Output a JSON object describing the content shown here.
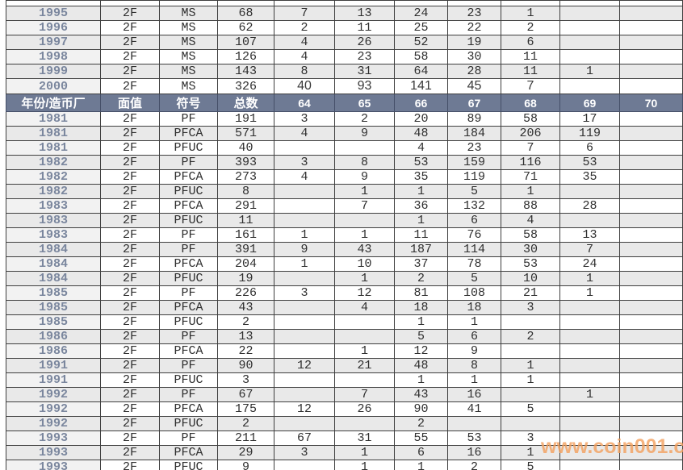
{
  "chart_data": {
    "type": "table",
    "header": [
      "年份/造币厂",
      "面值",
      "符号",
      "总数",
      "64",
      "65",
      "66",
      "67",
      "68",
      "69",
      "70"
    ],
    "partial_row_at_top": true,
    "sections": [
      {
        "name": "ms-rows-above-header",
        "first_shade": "gray",
        "rows": [
          [
            "1995",
            "2F",
            "MS",
            "68",
            "7",
            "13",
            "24",
            "23",
            "1",
            "",
            ""
          ],
          [
            "1996",
            "2F",
            "MS",
            "62",
            "2",
            "11",
            "25",
            "22",
            "2",
            "",
            ""
          ],
          [
            "1997",
            "2F",
            "MS",
            "107",
            "4",
            "26",
            "52",
            "19",
            "6",
            "",
            ""
          ],
          [
            "1998",
            "2F",
            "MS",
            "126",
            "4",
            "23",
            "58",
            "30",
            "11",
            "",
            ""
          ],
          [
            "1999",
            "2F",
            "MS",
            "143",
            "8",
            "31",
            "64",
            "28",
            "11",
            "1",
            ""
          ],
          [
            "2000",
            "2F",
            "MS",
            "326",
            "40",
            "93",
            "141",
            "45",
            "7",
            "",
            ""
          ]
        ]
      },
      {
        "name": "pf-rows-below-header",
        "first_shade": "white",
        "rows": [
          [
            "1981",
            "2F",
            "PF",
            "191",
            "3",
            "2",
            "20",
            "89",
            "58",
            "17",
            ""
          ],
          [
            "1981",
            "2F",
            "PFCA",
            "571",
            "4",
            "9",
            "48",
            "184",
            "206",
            "119",
            ""
          ],
          [
            "1981",
            "2F",
            "PFUC",
            "40",
            "",
            "",
            "4",
            "23",
            "7",
            "6",
            ""
          ],
          [
            "1982",
            "2F",
            "PF",
            "393",
            "3",
            "8",
            "53",
            "159",
            "116",
            "53",
            ""
          ],
          [
            "1982",
            "2F",
            "PFCA",
            "273",
            "4",
            "9",
            "35",
            "119",
            "71",
            "35",
            ""
          ],
          [
            "1982",
            "2F",
            "PFUC",
            "8",
            "",
            "1",
            "1",
            "5",
            "1",
            "",
            ""
          ],
          [
            "1983",
            "2F",
            "PFCA",
            "291",
            "",
            "7",
            "36",
            "132",
            "88",
            "28",
            ""
          ],
          [
            "1983",
            "2F",
            "PFUC",
            "11",
            "",
            "",
            "1",
            "6",
            "4",
            "",
            ""
          ],
          [
            "1983",
            "2F",
            "PF",
            "161",
            "1",
            "1",
            "11",
            "76",
            "58",
            "13",
            ""
          ],
          [
            "1984",
            "2F",
            "PF",
            "391",
            "9",
            "43",
            "187",
            "114",
            "30",
            "7",
            ""
          ],
          [
            "1984",
            "2F",
            "PFCA",
            "204",
            "1",
            "10",
            "37",
            "78",
            "53",
            "24",
            ""
          ],
          [
            "1984",
            "2F",
            "PFUC",
            "19",
            "",
            "1",
            "2",
            "5",
            "10",
            "1",
            ""
          ],
          [
            "1985",
            "2F",
            "PF",
            "226",
            "3",
            "12",
            "81",
            "108",
            "21",
            "1",
            ""
          ],
          [
            "1985",
            "2F",
            "PFCA",
            "43",
            "",
            "4",
            "18",
            "18",
            "3",
            "",
            ""
          ],
          [
            "1985",
            "2F",
            "PFUC",
            "2",
            "",
            "",
            "1",
            "1",
            "",
            "",
            ""
          ],
          [
            "1986",
            "2F",
            "PF",
            "13",
            "",
            "",
            "5",
            "6",
            "2",
            "",
            ""
          ],
          [
            "1986",
            "2F",
            "PFCA",
            "22",
            "",
            "1",
            "12",
            "9",
            "",
            "",
            ""
          ],
          [
            "1991",
            "2F",
            "PF",
            "90",
            "12",
            "21",
            "48",
            "8",
            "1",
            "",
            ""
          ],
          [
            "1991",
            "2F",
            "PFUC",
            "3",
            "",
            "",
            "1",
            "1",
            "1",
            "",
            ""
          ],
          [
            "1992",
            "2F",
            "PF",
            "67",
            "",
            "7",
            "43",
            "16",
            "",
            "1",
            ""
          ],
          [
            "1992",
            "2F",
            "PFCA",
            "175",
            "12",
            "26",
            "90",
            "41",
            "5",
            "",
            ""
          ],
          [
            "1992",
            "2F",
            "PFUC",
            "2",
            "",
            "",
            "2",
            "",
            "",
            "",
            ""
          ],
          [
            "1993",
            "2F",
            "PF",
            "211",
            "67",
            "31",
            "55",
            "53",
            "3",
            "",
            ""
          ],
          [
            "1993",
            "2F",
            "PFCA",
            "29",
            "3",
            "1",
            "6",
            "16",
            "1",
            "",
            ""
          ],
          [
            "1993",
            "2F",
            "PFUC",
            "9",
            "",
            "1",
            "1",
            "2",
            "5",
            "",
            ""
          ]
        ]
      }
    ]
  },
  "watermark": {
    "text": "www.coin001.com"
  },
  "colors": {
    "header_bg_left": "#5e6a84",
    "header_bg_grades": "#6e7a94",
    "header_text": "#ffffff",
    "row_gray": "#e9e9e9",
    "row_white": "#ffffff",
    "year_text": "#7b879e",
    "data_text": "#2f2f2f",
    "grid_border": "#3f3f3f",
    "watermark_orange": "#f3a261"
  }
}
